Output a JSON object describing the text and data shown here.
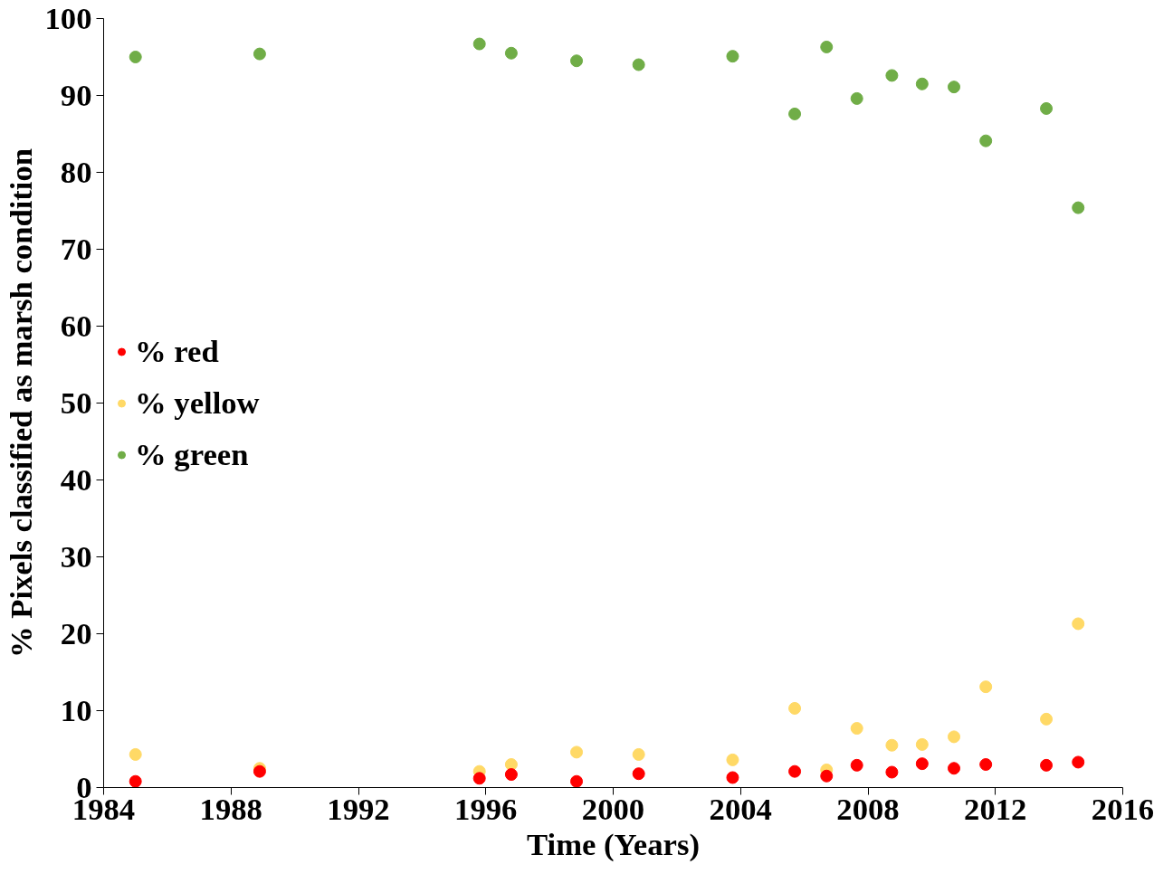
{
  "chart_data": {
    "type": "scatter",
    "xlabel": "Time (Years)",
    "ylabel": "% Pixels classified as marsh condition",
    "x": [
      1985.0,
      1988.9,
      1995.8,
      1996.8,
      1998.85,
      2000.8,
      2003.75,
      2005.7,
      2006.7,
      2007.65,
      2008.75,
      2009.7,
      2010.7,
      2011.7,
      2013.6,
      2014.6
    ],
    "series": [
      {
        "name": "% red",
        "color": "#ff0000",
        "values": [
          0.8,
          2.1,
          1.2,
          1.7,
          0.8,
          1.8,
          1.3,
          2.1,
          1.5,
          2.9,
          2.0,
          3.1,
          2.5,
          3.0,
          2.9,
          3.3
        ]
      },
      {
        "name": "% yellow",
        "color": "#ffd966",
        "values": [
          4.3,
          2.5,
          2.1,
          3.0,
          4.6,
          4.3,
          3.6,
          10.3,
          2.3,
          7.7,
          5.5,
          5.6,
          6.6,
          13.1,
          8.9,
          21.3
        ]
      },
      {
        "name": "% green",
        "color": "#70ad47",
        "values": [
          95.0,
          95.4,
          96.7,
          95.5,
          94.5,
          94.0,
          95.1,
          87.6,
          96.3,
          89.6,
          92.6,
          91.5,
          91.1,
          84.1,
          88.3,
          75.4
        ]
      }
    ],
    "xlim": [
      1984,
      2016
    ],
    "xticks": [
      1984,
      1988,
      1992,
      1996,
      2000,
      2004,
      2008,
      2012,
      2016
    ],
    "ylim": [
      0,
      100
    ],
    "yticks": [
      0,
      10,
      20,
      30,
      40,
      50,
      60,
      70,
      80,
      90,
      100
    ],
    "legend": "left",
    "marker": "circle",
    "grid": false
  }
}
